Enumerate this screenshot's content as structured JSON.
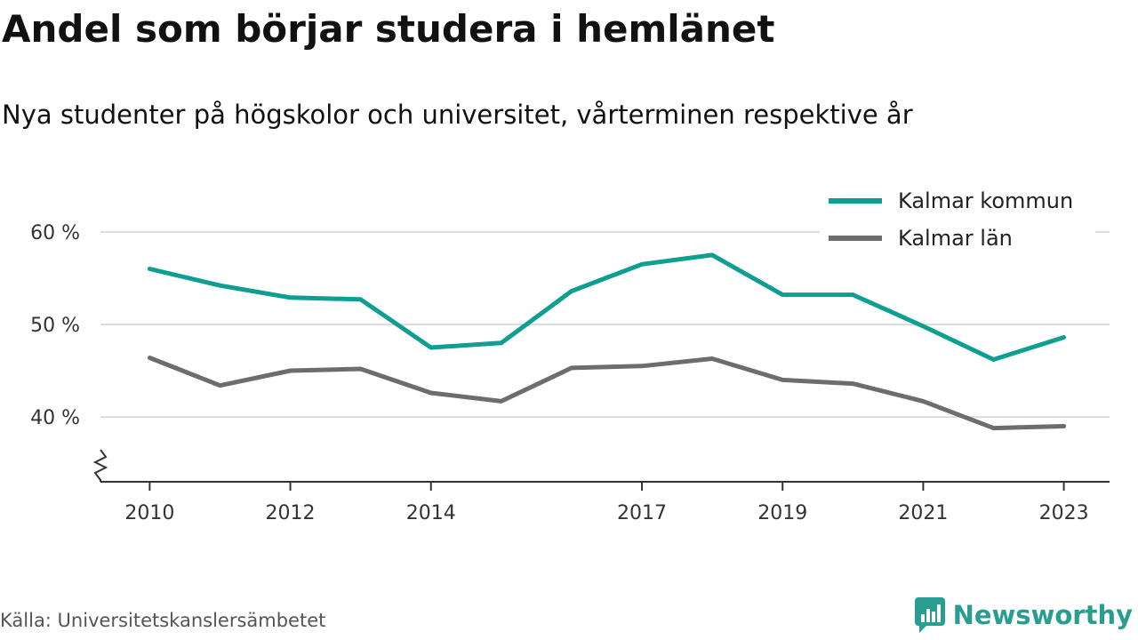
{
  "title": "Andel som börjar studera i hemlänet",
  "subtitle": "Nya studenter på högskolor och universitet, vårterminen respektive år",
  "source": "Källa: Universitetskanslersämbetet",
  "brand": {
    "name": "Newsworthy",
    "icon": "newsworthy-logo-icon"
  },
  "colors": {
    "series_1": "#0f9e92",
    "series_2": "#6d6d70",
    "grid": "#dcdcdc",
    "axis": "#333333"
  },
  "chart_data": {
    "type": "line",
    "x": [
      2010,
      2011,
      2012,
      2013,
      2014,
      2015,
      2016,
      2017,
      2018,
      2019,
      2020,
      2021,
      2022,
      2023
    ],
    "xticks": [
      2010,
      2012,
      2014,
      2017,
      2019,
      2021,
      2023
    ],
    "xtick_labels": [
      "2010",
      "2012",
      "2014",
      "2017",
      "2019",
      "2021",
      "2023"
    ],
    "yticks": [
      40,
      50,
      60
    ],
    "ytick_labels": [
      "40 %",
      "50 %",
      "60 %"
    ],
    "ylim": [
      33,
      62
    ],
    "xlim": [
      2009.3,
      2023.65
    ],
    "axis_break": "y",
    "grid": true,
    "legend_position": "top-right",
    "series": [
      {
        "name": "Kalmar kommun",
        "color": "#0f9e92",
        "values": [
          56.0,
          54.2,
          52.9,
          52.7,
          47.5,
          48.0,
          53.6,
          56.5,
          57.5,
          53.2,
          53.2,
          49.8,
          46.2,
          48.6
        ]
      },
      {
        "name": "Kalmar län",
        "color": "#6d6d70",
        "values": [
          46.4,
          43.4,
          45.0,
          45.2,
          42.6,
          41.7,
          45.3,
          45.5,
          46.3,
          44.0,
          43.6,
          41.7,
          38.8,
          39.0
        ]
      }
    ]
  }
}
